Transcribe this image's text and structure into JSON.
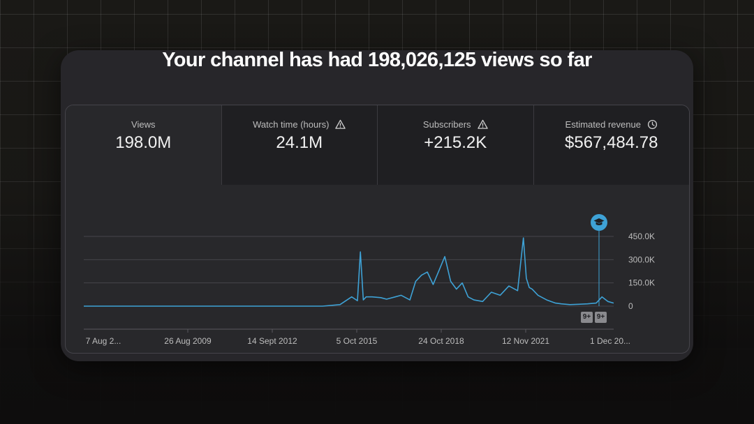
{
  "headline": "Your channel has had 198,026,125 views so far",
  "metrics": [
    {
      "label": "Views",
      "value": "198.0M",
      "icon": ""
    },
    {
      "label": "Watch time (hours)",
      "value": "24.1M",
      "icon": "warning-icon"
    },
    {
      "label": "Subscribers",
      "value": "+215.2K",
      "icon": "warning-icon"
    },
    {
      "label": "Estimated revenue",
      "value": "$567,484.78",
      "icon": "clock-icon"
    }
  ],
  "chart_data": {
    "type": "line",
    "x_tick_labels": [
      "7 Aug 2...",
      "26 Aug 2009",
      "14 Sept 2012",
      "5 Oct 2015",
      "24 Oct 2018",
      "12 Nov 2021",
      "1 Dec 20..."
    ],
    "y_tick_labels": [
      "450.0K",
      "300.0K",
      "150.0K",
      "0"
    ],
    "ylim": [
      0,
      450000
    ],
    "grid": true,
    "legend": "none",
    "series": [
      {
        "color": "#3ea2d6",
        "x": [
          2006.6,
          2014.8,
          2015.4,
          2015.8,
          2016.0,
          2016.1,
          2016.2,
          2016.3,
          2016.5,
          2016.8,
          2017.0,
          2017.3,
          2017.5,
          2017.8,
          2018.0,
          2018.2,
          2018.4,
          2018.6,
          2018.8,
          2019.0,
          2019.2,
          2019.4,
          2019.6,
          2019.8,
          2020.0,
          2020.3,
          2020.6,
          2020.9,
          2021.2,
          2021.5,
          2021.7,
          2021.8,
          2021.9,
          2022.0,
          2022.2,
          2022.5,
          2022.8,
          2023.0,
          2023.3,
          2023.6,
          2023.9,
          2024.2,
          2024.4,
          2024.6,
          2024.8
        ],
        "y": [
          0,
          0,
          10000,
          60000,
          35000,
          350000,
          40000,
          60000,
          60000,
          55000,
          45000,
          60000,
          70000,
          40000,
          160000,
          200000,
          220000,
          140000,
          230000,
          320000,
          160000,
          110000,
          150000,
          60000,
          40000,
          30000,
          90000,
          70000,
          130000,
          100000,
          440000,
          180000,
          120000,
          110000,
          70000,
          40000,
          20000,
          15000,
          10000,
          12000,
          15000,
          20000,
          60000,
          30000,
          20000
        ]
      }
    ],
    "annotations": [
      "9+",
      "9+"
    ]
  },
  "milestone_icon": "graduation-cap-icon"
}
